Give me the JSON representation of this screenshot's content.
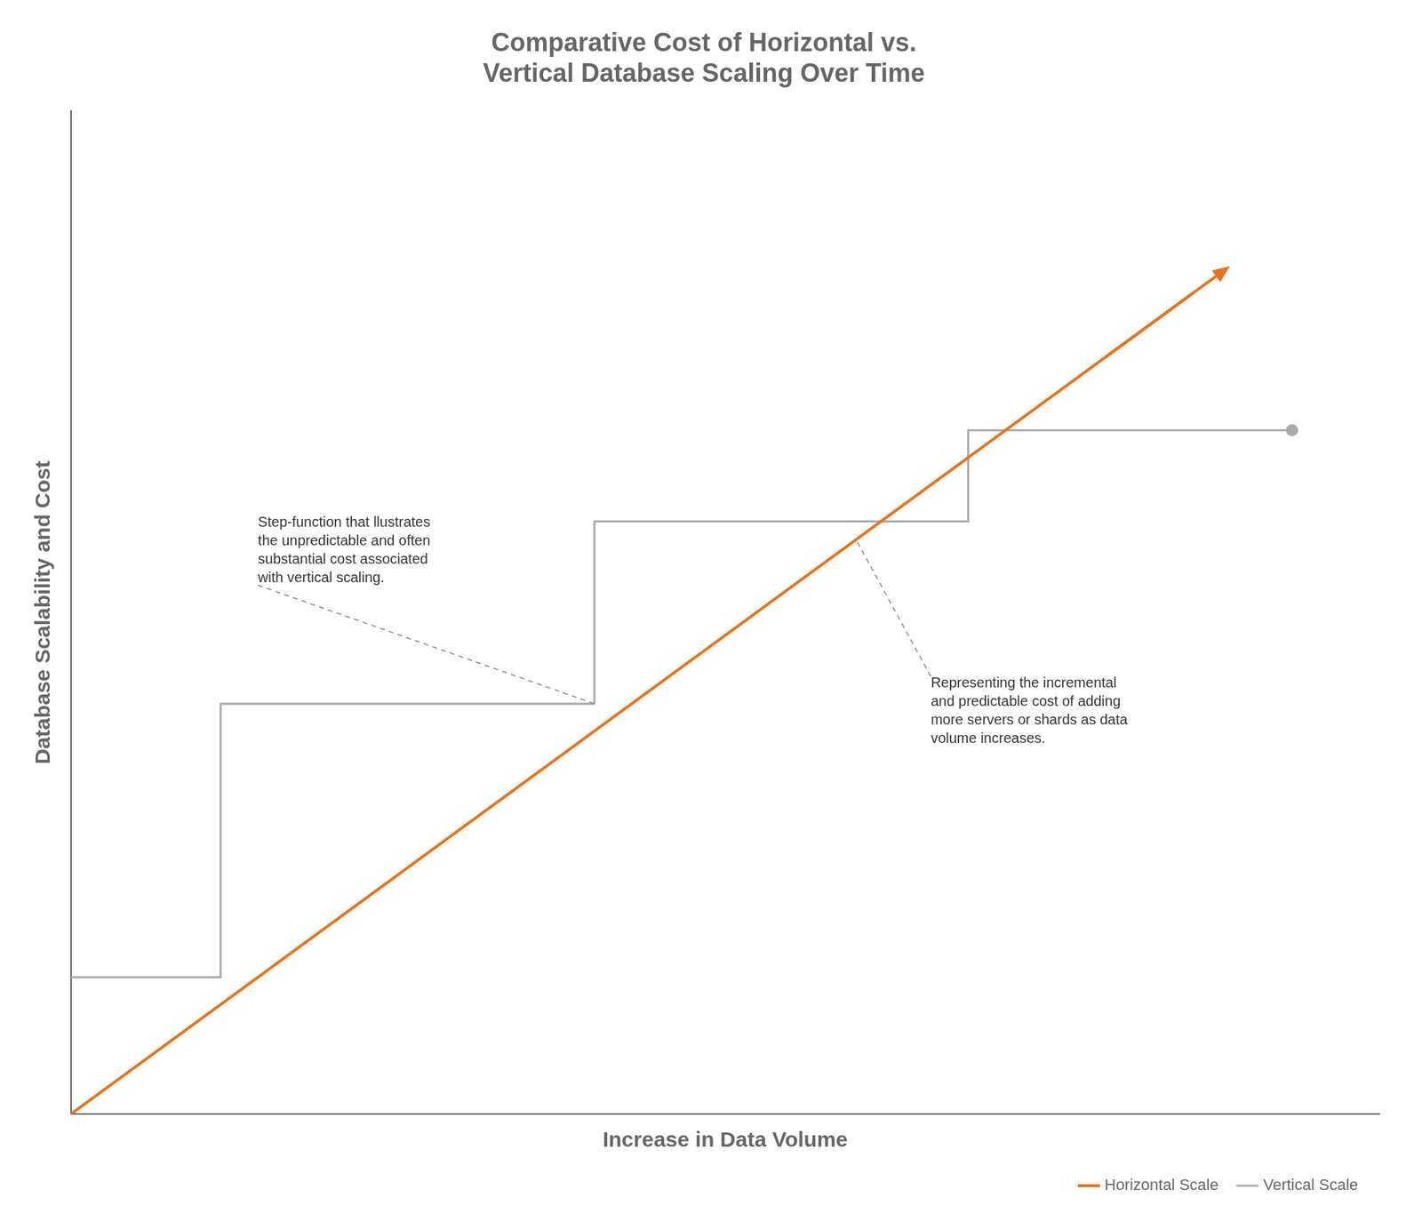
{
  "chart_data": {
    "type": "line",
    "title": "Comparative Cost of Horizontal vs.\nVertical Database Scaling Over Time",
    "xlabel": "Increase in Data Volume",
    "ylabel": "Database Scalability and Cost",
    "series": [
      {
        "name": "Horizontal Scale",
        "color": "#e8731a",
        "x": [
          0.0,
          9.0
        ],
        "values": [
          0.0,
          9.0
        ],
        "arrow": {
          "start": [
            8.3,
            8.3
          ],
          "end": [
            9.3,
            9.3
          ]
        }
      },
      {
        "name": "Vertical Scale",
        "color": "#aaaaaa",
        "x": [
          0.0,
          1.2,
          1.2,
          4.2,
          4.2,
          7.2,
          7.2,
          9.8
        ],
        "values": [
          1.5,
          1.5,
          4.5,
          4.5,
          6.5,
          6.5,
          7.5,
          7.5
        ]
      }
    ],
    "annotations": [
      {
        "text": "Step-function that llustrates\nthe unpredictable and often\nsubstantial cost associated\nwith vertical scaling.",
        "xy": [
          4.2,
          4.5
        ],
        "xytext": [
          1.5,
          5.8
        ]
      },
      {
        "text": "Representing the incremental\nand predictable cost of adding\nmore servers or shards as data\nvolume increases.",
        "xy": [
          6.3,
          6.3
        ],
        "xytext": [
          6.9,
          4.8
        ]
      }
    ],
    "xlim": [
      0,
      10.5
    ],
    "ylim": [
      0,
      11.0
    ],
    "tick_labels": false,
    "grid": false,
    "legend": "lower right"
  }
}
